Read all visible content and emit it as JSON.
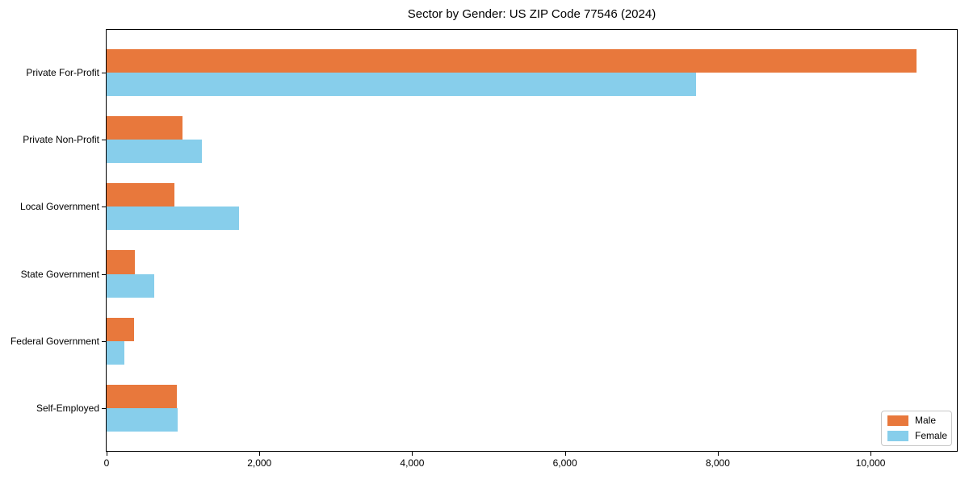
{
  "figure": {
    "title": "Sector by Gender: US ZIP Code 77546 (2024)"
  },
  "legend": {
    "entries": [
      {
        "label": "Male",
        "color": "#e8783c"
      },
      {
        "label": "Female",
        "color": "#87ceeb"
      }
    ],
    "position": "lower right"
  },
  "chart_data": {
    "type": "bar",
    "orientation": "horizontal",
    "title": "Sector by Gender: US ZIP Code 77546 (2024)",
    "categories": [
      "Private For-Profit",
      "Private Non-Profit",
      "Local Government",
      "State Government",
      "Federal Government",
      "Self-Employed"
    ],
    "series": [
      {
        "name": "Male",
        "color": "#e8783c",
        "values": [
          10600,
          990,
          890,
          370,
          360,
          920
        ]
      },
      {
        "name": "Female",
        "color": "#87ceeb",
        "values": [
          7720,
          1250,
          1730,
          620,
          230,
          930
        ]
      }
    ],
    "xlabel": "",
    "ylabel": "",
    "xlim": [
      0,
      11130
    ],
    "xticks": [
      0,
      2000,
      4000,
      6000,
      8000,
      10000
    ],
    "xtick_labels": [
      "0",
      "2,000",
      "4,000",
      "6,000",
      "8,000",
      "10,000"
    ],
    "grid": false,
    "legend_position": "lower right",
    "bar_order_in_group": [
      "Male",
      "Female"
    ]
  }
}
